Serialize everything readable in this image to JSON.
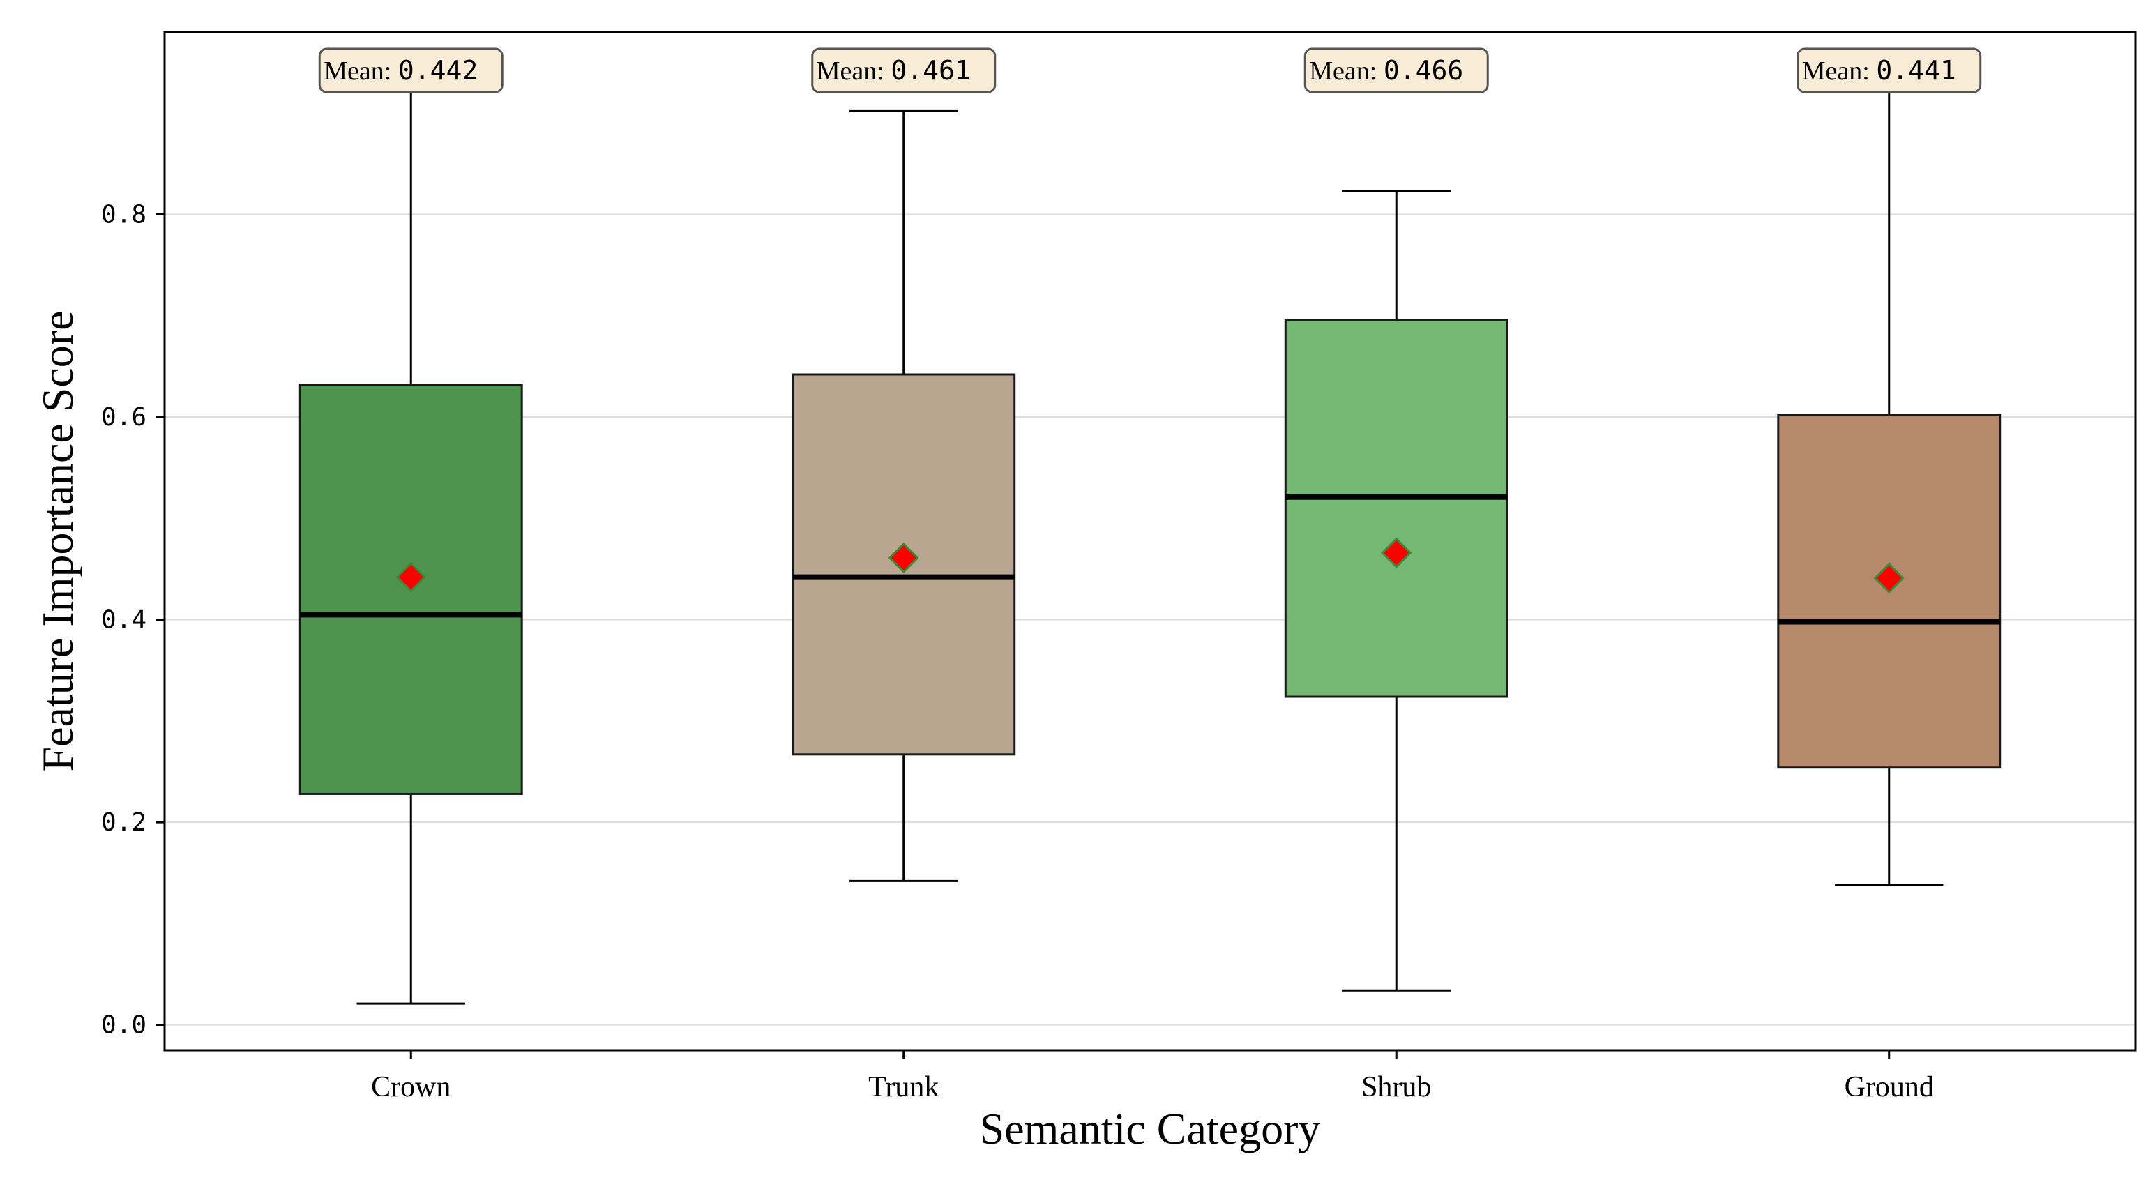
{
  "chart_data": {
    "type": "box",
    "xlabel": "Semantic Category",
    "ylabel": "Feature Importance Score",
    "ylim": [
      -0.025,
      0.98
    ],
    "yticks": [
      0.0,
      0.2,
      0.4,
      0.6,
      0.8
    ],
    "ytick_labels": [
      "0.0",
      "0.2",
      "0.4",
      "0.6",
      "0.8"
    ],
    "grid": "horizontal",
    "categories": [
      "Crown",
      "Trunk",
      "Shrub",
      "Ground"
    ],
    "boxes": [
      {
        "category": "Crown",
        "whisker_low": 0.021,
        "q1": 0.228,
        "median": 0.405,
        "q3": 0.632,
        "whisker_high": 0.932,
        "mean": 0.442,
        "mean_prefix": "Mean:",
        "mean_label": "0.442",
        "color": "#4e9450"
      },
      {
        "category": "Trunk",
        "whisker_low": 0.142,
        "q1": 0.267,
        "median": 0.442,
        "q3": 0.642,
        "whisker_high": 0.902,
        "mean": 0.461,
        "mean_prefix": "Mean:",
        "mean_label": "0.461",
        "color": "#b8a690"
      },
      {
        "category": "Shrub",
        "whisker_low": 0.034,
        "q1": 0.324,
        "median": 0.521,
        "q3": 0.696,
        "whisker_high": 0.823,
        "mean": 0.466,
        "mean_prefix": "Mean:",
        "mean_label": "0.466",
        "color": "#75b874"
      },
      {
        "category": "Ground",
        "whisker_low": 0.138,
        "q1": 0.254,
        "median": 0.398,
        "q3": 0.602,
        "whisker_high": 0.93,
        "mean": 0.441,
        "mean_prefix": "Mean:",
        "mean_label": "0.441",
        "color": "#b6896a"
      }
    ],
    "mean_marker": {
      "shape": "diamond",
      "color": "#ff0000",
      "edge_color": "#3a8a3a"
    },
    "annotation_box_color": "#f8ecd6"
  }
}
